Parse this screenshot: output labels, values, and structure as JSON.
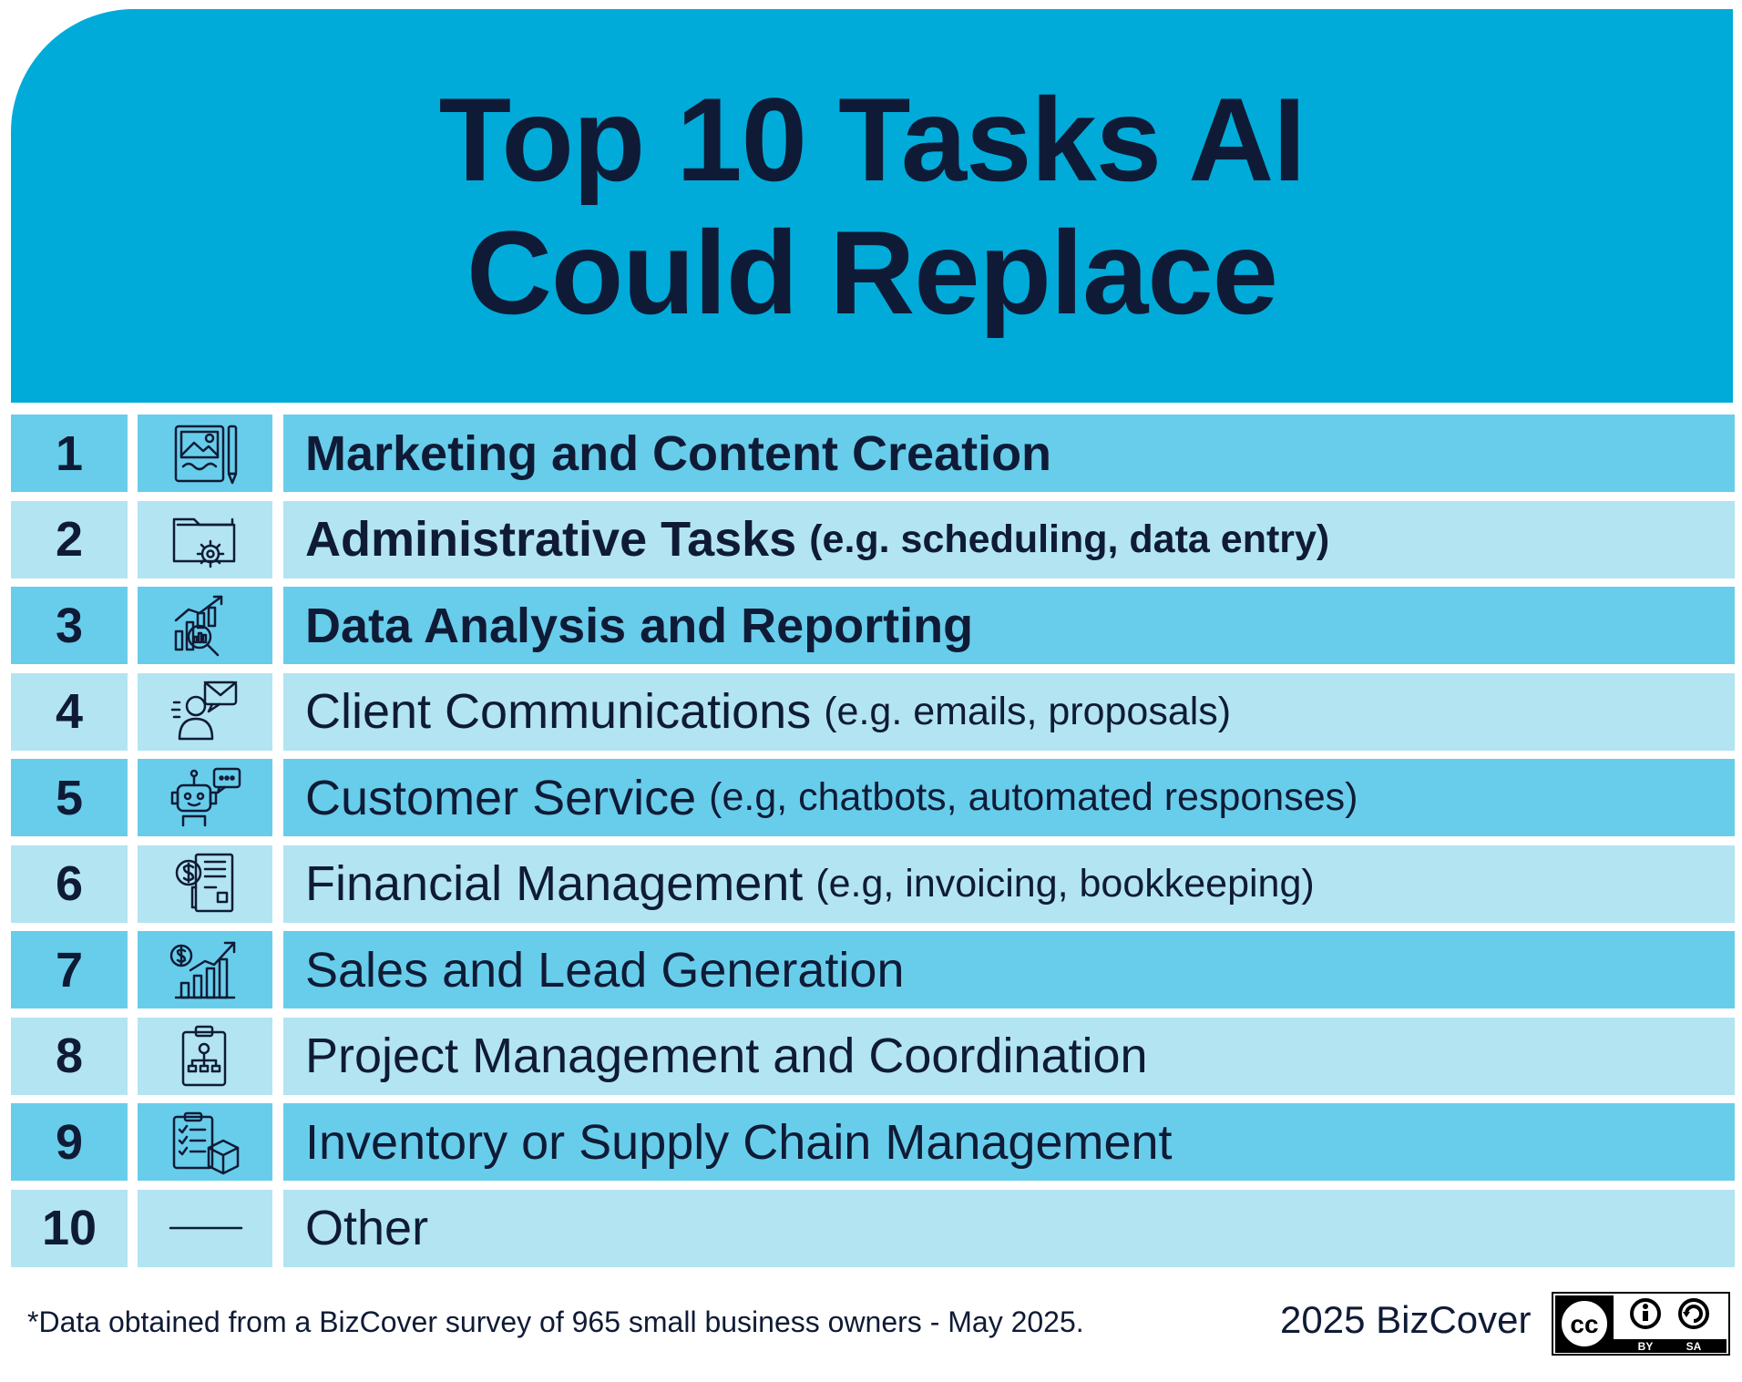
{
  "header": {
    "title_line1": "Top 10 Tasks AI",
    "title_line2": "Could Replace"
  },
  "chart_data": {
    "type": "table",
    "title": "Top 10 Tasks AI Could Replace",
    "rows": [
      {
        "rank": "1",
        "label": "Marketing and Content Creation",
        "note": "",
        "bold": true,
        "icon": "image-edit-icon"
      },
      {
        "rank": "2",
        "label": "Administrative Tasks",
        "note": "(e.g. scheduling, data entry)",
        "bold": true,
        "icon": "folder-gear-icon"
      },
      {
        "rank": "3",
        "label": "Data Analysis and Reporting",
        "note": "",
        "bold": true,
        "icon": "chart-magnifier-icon"
      },
      {
        "rank": "4",
        "label": "Client Communications",
        "note": "(e.g. emails, proposals)",
        "bold": false,
        "icon": "person-message-icon"
      },
      {
        "rank": "5",
        "label": "Customer Service",
        "note": "(e.g, chatbots, automated responses)",
        "bold": false,
        "icon": "robot-chat-icon"
      },
      {
        "rank": "6",
        "label": "Financial Management",
        "note": "(e.g, invoicing, bookkeeping)",
        "bold": false,
        "icon": "invoice-dollar-icon"
      },
      {
        "rank": "7",
        "label": "Sales and Lead Generation",
        "note": "",
        "bold": false,
        "icon": "sales-growth-icon"
      },
      {
        "rank": "8",
        "label": "Project Management and Coordination",
        "note": "",
        "bold": false,
        "icon": "clipboard-org-icon"
      },
      {
        "rank": "9",
        "label": "Inventory or Supply Chain Management",
        "note": "",
        "bold": false,
        "icon": "checklist-box-icon"
      },
      {
        "rank": "10",
        "label": "Other",
        "note": "",
        "bold": false,
        "icon": "dash-icon"
      }
    ]
  },
  "footer": {
    "note": "*Data obtained from a BizCover survey of 965 small business owners - May 2025.",
    "brand": "2025 BizCover",
    "license_by": "BY",
    "license_sa": "SA"
  },
  "colors": {
    "header": "#00abd9",
    "row_dark": "#68cdea",
    "row_light": "#b3e4f2",
    "text": "#0f1b36"
  }
}
